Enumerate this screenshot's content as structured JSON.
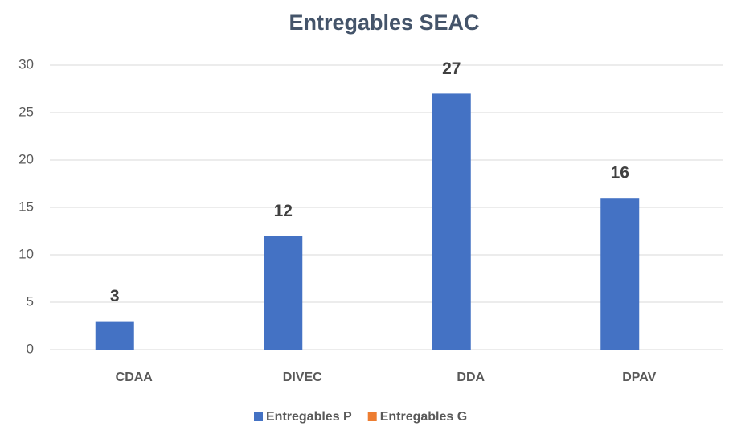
{
  "chart_data": {
    "type": "bar",
    "title": "Entregables SEAC",
    "categories": [
      "CDAA",
      "DIVEC",
      "DDA",
      "DPAV"
    ],
    "series": [
      {
        "name": "Entregables P",
        "color": "#4472c4",
        "values": [
          3,
          12,
          27,
          16
        ]
      },
      {
        "name": "Entregables G",
        "color": "#ed7d31",
        "values": [
          null,
          null,
          null,
          null
        ]
      }
    ],
    "ylim": [
      0,
      30
    ],
    "yticks": [
      0,
      5,
      10,
      15,
      20,
      25,
      30
    ],
    "grid": true,
    "legend": "bottom"
  }
}
